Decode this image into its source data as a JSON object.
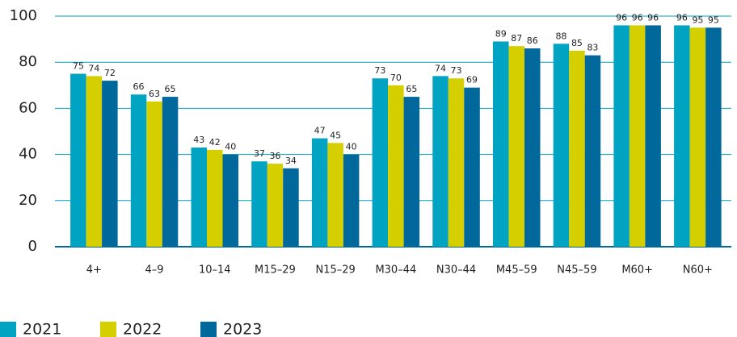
{
  "chart_data": {
    "type": "bar",
    "categories": [
      "4+",
      "4–9",
      "10–14",
      "M15–29",
      "N15–29",
      "M30–44",
      "N30–44",
      "M45–59",
      "N45–59",
      "M60+",
      "N60+"
    ],
    "series": [
      {
        "name": "2021",
        "color": "#00a3c1",
        "values": [
          75,
          66,
          43,
          37,
          47,
          73,
          74,
          89,
          88,
          96,
          96
        ]
      },
      {
        "name": "2022",
        "color": "#d6cf00",
        "values": [
          74,
          63,
          42,
          36,
          45,
          70,
          73,
          87,
          85,
          96,
          95
        ]
      },
      {
        "name": "2023",
        "color": "#00689a",
        "values": [
          72,
          65,
          40,
          34,
          40,
          65,
          69,
          86,
          83,
          96,
          95
        ]
      }
    ],
    "ylim": [
      0,
      100
    ],
    "yticks": [
      0,
      20,
      40,
      60,
      80,
      100
    ],
    "grid": true
  }
}
